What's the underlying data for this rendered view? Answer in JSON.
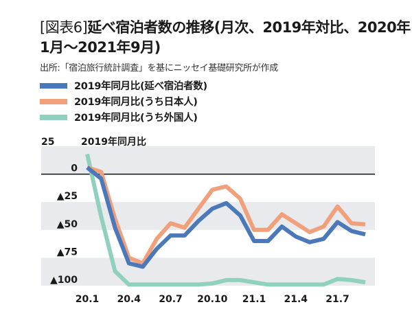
{
  "chart_data": {
    "type": "line",
    "title_prefix": "[図表6]",
    "title": "延べ宿泊者数の推移(月次、2019年対比、2020年1月～2021年9月)",
    "source": "出所:「宿泊旅行統計調査」を基にニッセイ基礎研究所が作成",
    "ylabel": "2019年同月比",
    "ylim": [
      -100,
      25
    ],
    "yticks": [
      25,
      0,
      -25,
      -50,
      -75,
      -100
    ],
    "ytick_labels": [
      "25",
      "0",
      "▲25",
      "▲50",
      "▲75",
      "▲100"
    ],
    "x": [
      "20.1",
      "20.2",
      "20.3",
      "20.4",
      "20.5",
      "20.6",
      "20.7",
      "20.8",
      "20.9",
      "20.10",
      "20.11",
      "20.12",
      "21.1",
      "21.2",
      "21.3",
      "21.4",
      "21.5",
      "21.6",
      "21.7",
      "21.8",
      "21.9"
    ],
    "xtick_labels": [
      "20.1",
      "20.4",
      "20.7",
      "20.10",
      "21.1",
      "21.4",
      "21.7"
    ],
    "legend_placement": "top",
    "grid": "alternating horizontal bands",
    "series": [
      {
        "name": "2019年同月比(延べ宿泊者数)",
        "color": "#4a78b8",
        "values": [
          6,
          -4,
          -48,
          -80,
          -83,
          -67,
          -55,
          -55,
          -42,
          -31,
          -26,
          -37,
          -60,
          -60,
          -47,
          -56,
          -61,
          -58,
          -43,
          -51,
          -54
        ]
      },
      {
        "name": "2019年同月比(うち日本人)",
        "color": "#f0a07a",
        "values": [
          6,
          2,
          -40,
          -75,
          -80,
          -58,
          -44,
          -48,
          -31,
          -14,
          -11,
          -22,
          -50,
          -50,
          -36,
          -44,
          -52,
          -47,
          -29,
          -44,
          -45
        ]
      },
      {
        "name": "2019年同月比(うち外国人)",
        "color": "#8fd0bf",
        "values": [
          18,
          -38,
          -87,
          -99,
          -99,
          -99,
          -99,
          -99,
          -99,
          -98,
          -95,
          -95,
          -97,
          -99,
          -99,
          -99,
          -99,
          -99,
          -94,
          -95,
          -97
        ]
      }
    ],
    "band_color": "#e8eaed"
  }
}
